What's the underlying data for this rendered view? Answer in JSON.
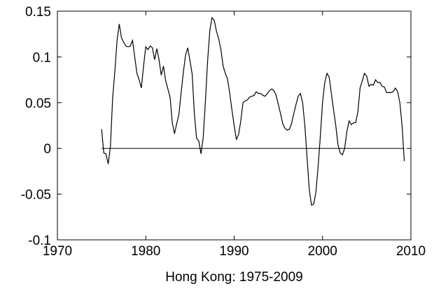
{
  "chart_data": {
    "type": "line",
    "title": "",
    "xlabel": "Hong Kong: 1975-2009",
    "ylabel": "",
    "xlim": [
      1970,
      2010
    ],
    "ylim": [
      -0.1,
      0.15
    ],
    "grid": false,
    "xticks": [
      1970,
      1980,
      1990,
      2000,
      2010
    ],
    "xtick_labels": [
      "1970",
      "1980",
      "1990",
      "2000",
      "2010"
    ],
    "yticks": [
      -0.1,
      -0.05,
      0,
      0.05,
      0.1,
      0.15
    ],
    "ytick_labels": [
      "-0.1",
      "-0.05",
      "0",
      "0.05",
      "0.1",
      "0.15"
    ],
    "reference_line": {
      "y": 0,
      "x_from": 1975,
      "x_to": 2009.25
    },
    "series": [
      {
        "color": "#000000",
        "x": [
          1975.0,
          1975.25,
          1975.5,
          1975.75,
          1976.0,
          1976.25,
          1976.5,
          1976.75,
          1977.0,
          1977.25,
          1977.5,
          1977.75,
          1978.0,
          1978.25,
          1978.5,
          1978.75,
          1979.0,
          1979.25,
          1979.5,
          1979.75,
          1980.0,
          1980.25,
          1980.5,
          1980.75,
          1981.0,
          1981.25,
          1981.5,
          1981.75,
          1982.0,
          1982.25,
          1982.5,
          1982.75,
          1983.0,
          1983.25,
          1983.5,
          1983.75,
          1984.0,
          1984.25,
          1984.5,
          1984.75,
          1985.0,
          1985.25,
          1985.5,
          1985.75,
          1986.0,
          1986.25,
          1986.5,
          1986.75,
          1987.0,
          1987.25,
          1987.5,
          1987.75,
          1988.0,
          1988.25,
          1988.5,
          1988.75,
          1989.0,
          1989.25,
          1989.5,
          1989.75,
          1990.0,
          1990.25,
          1990.5,
          1990.75,
          1991.0,
          1991.25,
          1991.5,
          1991.75,
          1992.0,
          1992.25,
          1992.5,
          1992.75,
          1993.0,
          1993.25,
          1993.5,
          1993.75,
          1994.0,
          1994.25,
          1994.5,
          1994.75,
          1995.0,
          1995.25,
          1995.5,
          1995.75,
          1996.0,
          1996.25,
          1996.5,
          1996.75,
          1997.0,
          1997.25,
          1997.5,
          1997.75,
          1998.0,
          1998.25,
          1998.5,
          1998.75,
          1999.0,
          1999.25,
          1999.5,
          1999.75,
          2000.0,
          2000.25,
          2000.5,
          2000.75,
          2001.0,
          2001.25,
          2001.5,
          2001.75,
          2002.0,
          2002.25,
          2002.5,
          2002.75,
          2003.0,
          2003.25,
          2003.5,
          2003.75,
          2004.0,
          2004.25,
          2004.5,
          2004.75,
          2005.0,
          2005.25,
          2005.5,
          2005.75,
          2006.0,
          2006.25,
          2006.5,
          2006.75,
          2007.0,
          2007.25,
          2007.5,
          2007.75,
          2008.0,
          2008.25,
          2008.5,
          2008.75,
          2009.0,
          2009.25
        ],
        "values": [
          0.021,
          -0.005,
          -0.006,
          -0.017,
          0.002,
          0.055,
          0.084,
          0.118,
          0.136,
          0.121,
          0.116,
          0.112,
          0.111,
          0.112,
          0.118,
          0.1,
          0.082,
          0.075,
          0.066,
          0.09,
          0.111,
          0.108,
          0.112,
          0.11,
          0.097,
          0.109,
          0.097,
          0.08,
          0.09,
          0.074,
          0.065,
          0.056,
          0.028,
          0.016,
          0.027,
          0.037,
          0.061,
          0.083,
          0.102,
          0.11,
          0.096,
          0.081,
          0.038,
          0.011,
          0.008,
          -0.006,
          0.012,
          0.052,
          0.096,
          0.129,
          0.143,
          0.14,
          0.128,
          0.12,
          0.108,
          0.09,
          0.082,
          0.076,
          0.06,
          0.042,
          0.025,
          0.01,
          0.015,
          0.03,
          0.05,
          0.052,
          0.053,
          0.056,
          0.057,
          0.058,
          0.062,
          0.06,
          0.06,
          0.058,
          0.057,
          0.06,
          0.063,
          0.065,
          0.063,
          0.058,
          0.048,
          0.038,
          0.027,
          0.022,
          0.02,
          0.021,
          0.027,
          0.038,
          0.048,
          0.057,
          0.06,
          0.05,
          0.025,
          -0.01,
          -0.045,
          -0.062,
          -0.061,
          -0.048,
          -0.02,
          0.013,
          0.05,
          0.072,
          0.082,
          0.078,
          0.06,
          0.042,
          0.025,
          0.004,
          -0.005,
          -0.007,
          0.0,
          0.018,
          0.03,
          0.026,
          0.028,
          0.028,
          0.04,
          0.066,
          0.074,
          0.082,
          0.079,
          0.068,
          0.07,
          0.069,
          0.075,
          0.072,
          0.072,
          0.068,
          0.067,
          0.061,
          0.061,
          0.061,
          0.062,
          0.066,
          0.062,
          0.05,
          0.025,
          -0.014
        ]
      }
    ]
  }
}
